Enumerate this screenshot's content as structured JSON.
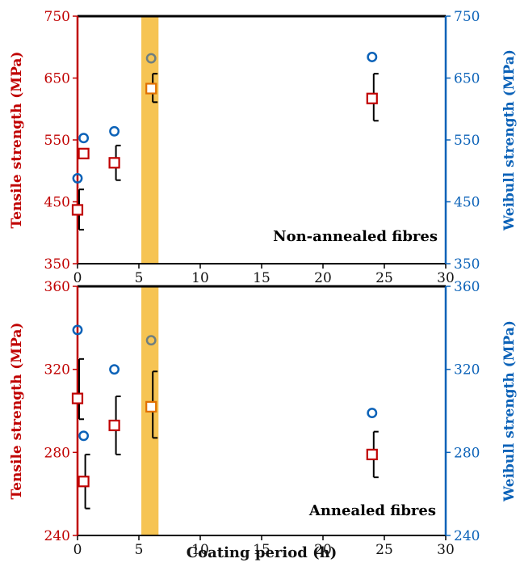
{
  "xlabel": "Coating period (h)",
  "colors": {
    "tensile": "#c00000",
    "weibull": "#0b62b8",
    "highlight": "#f6c453",
    "highlight_marker": "#e07000",
    "highlight_weibull": "#6f7f7f"
  },
  "chart_data": [
    {
      "type": "scatter",
      "annotation": "Non-annealed fibres",
      "xlim": [
        0,
        30
      ],
      "xticks": [
        0,
        5,
        10,
        15,
        20,
        25,
        30
      ],
      "ylim_left": [
        350,
        750
      ],
      "ylim_right": [
        350,
        750
      ],
      "yticks": [
        350,
        450,
        550,
        650,
        750
      ],
      "ylabel_left": "Tensile strength (MPa)",
      "ylabel_right": "Weibull strength (MPa)",
      "highlight_x": [
        5.2,
        6.6
      ],
      "series": [
        {
          "marker": "square",
          "axis": "left",
          "points": [
            {
              "x": 0,
              "y": 437,
              "err_low": 405,
              "err_high": 470
            },
            {
              "x": 0.5,
              "y": 528
            },
            {
              "x": 3,
              "y": 513,
              "err_low": 485,
              "err_high": 541
            },
            {
              "x": 6,
              "y": 633,
              "err_low": 611,
              "err_high": 657
            },
            {
              "x": 24,
              "y": 617,
              "err_low": 581,
              "err_high": 657
            }
          ]
        },
        {
          "marker": "circle",
          "axis": "right",
          "points": [
            {
              "x": 0,
              "y": 488
            },
            {
              "x": 0.5,
              "y": 553
            },
            {
              "x": 3,
              "y": 564
            },
            {
              "x": 6,
              "y": 682
            },
            {
              "x": 24,
              "y": 684
            }
          ]
        }
      ]
    },
    {
      "type": "scatter",
      "annotation": "Annealed fibres",
      "xlim": [
        0,
        30
      ],
      "xticks": [
        0,
        5,
        10,
        15,
        20,
        25,
        30
      ],
      "ylim_left": [
        240,
        360
      ],
      "ylim_right": [
        240,
        360
      ],
      "yticks": [
        240,
        280,
        320,
        360
      ],
      "ylabel_left": "Tensile strength (MPa)",
      "ylabel_right": "Weibull strength (MPa)",
      "highlight_x": [
        5.2,
        6.6
      ],
      "series": [
        {
          "marker": "square",
          "axis": "left",
          "points": [
            {
              "x": 0,
              "y": 306,
              "err_low": 296,
              "err_high": 325
            },
            {
              "x": 0.5,
              "y": 266,
              "err_low": 253,
              "err_high": 279
            },
            {
              "x": 3,
              "y": 293,
              "err_low": 279,
              "err_high": 307
            },
            {
              "x": 6,
              "y": 302,
              "err_low": 287,
              "err_high": 319
            },
            {
              "x": 24,
              "y": 279,
              "err_low": 268,
              "err_high": 290
            }
          ]
        },
        {
          "marker": "circle",
          "axis": "right",
          "points": [
            {
              "x": 0,
              "y": 339
            },
            {
              "x": 0.5,
              "y": 288
            },
            {
              "x": 3,
              "y": 320
            },
            {
              "x": 6,
              "y": 334
            },
            {
              "x": 24,
              "y": 299
            }
          ]
        }
      ]
    }
  ]
}
